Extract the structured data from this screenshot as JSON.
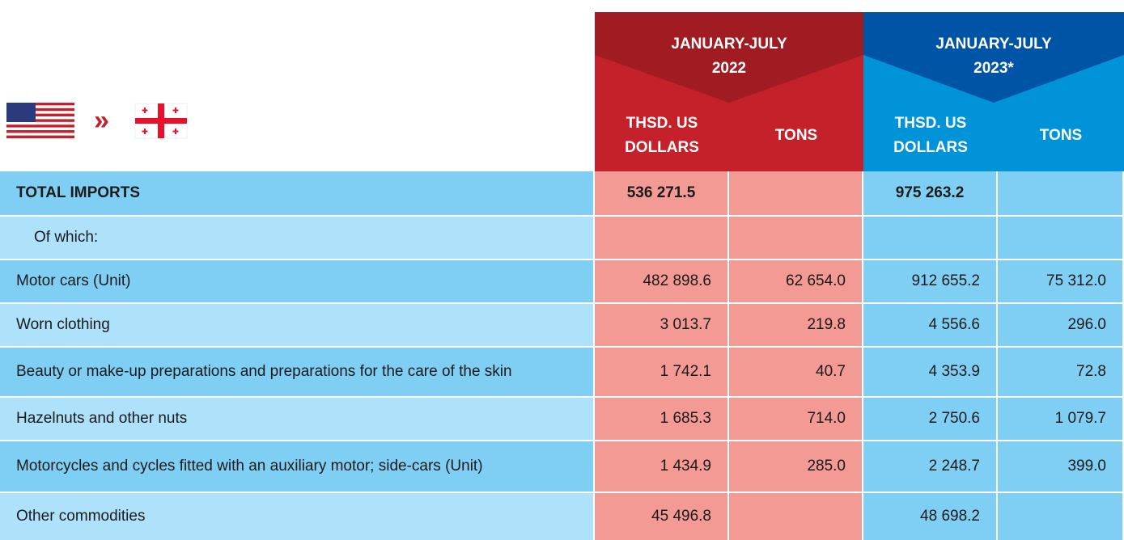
{
  "header": {
    "periods": [
      {
        "label": "JANUARY-JULY 2022",
        "columns": [
          "THSD. US DOLLARS",
          "TONS"
        ]
      },
      {
        "label": "JANUARY-JULY 2023*",
        "columns": [
          "THSD. US DOLLARS",
          "TONS"
        ]
      }
    ]
  },
  "table": {
    "rows": [
      [
        "TOTAL IMPORTS",
        "536 271.5",
        null,
        "975 263.2",
        null
      ],
      [
        "Of which:",
        null,
        null,
        null,
        null
      ],
      [
        "Motor cars (Unit)",
        "482 898.6",
        "62 654.0",
        "912 655.2",
        "75 312.0"
      ],
      [
        "Worn clothing",
        "3 013.7",
        "219.8",
        "4 556.6",
        "296.0"
      ],
      [
        "Beauty or make-up preparations and preparations for the care of the skin",
        "1 742.1",
        "40.7",
        "4 353.9",
        "72.8"
      ],
      [
        "Hazelnuts and other nuts",
        "1 685.3",
        "714.0",
        "2 750.6",
        "1 079.7"
      ],
      [
        "Motorcycles and cycles fitted with an auxiliary motor; side-cars (Unit)",
        "1 434.9",
        "285.0",
        "2 248.7",
        "399.0"
      ],
      [
        "Other commodities",
        "45 496.8",
        null,
        "48 698.2",
        null
      ]
    ]
  }
}
